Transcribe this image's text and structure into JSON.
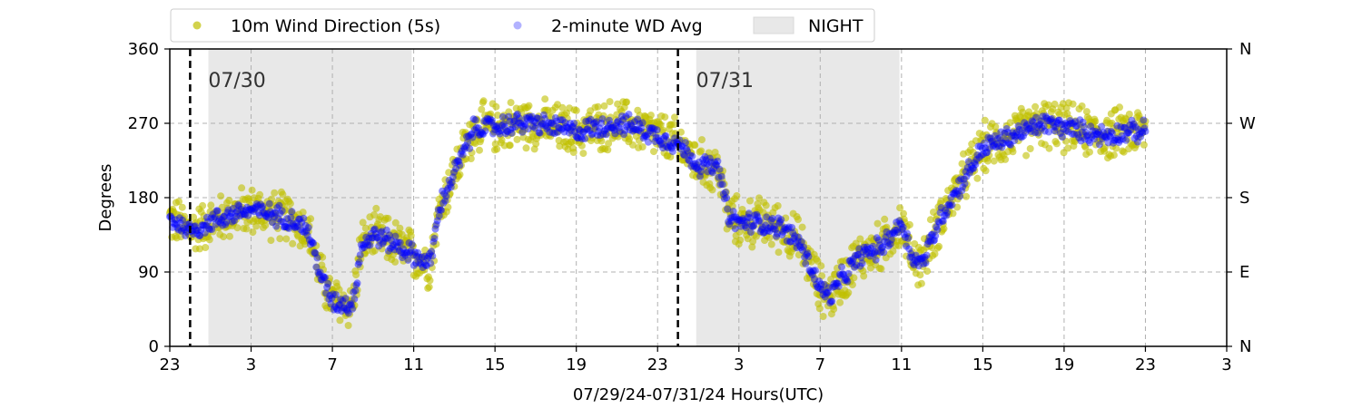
{
  "chart_data": {
    "type": "scatter",
    "x_unit": "hours since 23:00 UTC 07/29",
    "x_ticks": [
      {
        "x": 0,
        "label": "23"
      },
      {
        "x": 4,
        "label": "3"
      },
      {
        "x": 8,
        "label": "7"
      },
      {
        "x": 12,
        "label": "11"
      },
      {
        "x": 16,
        "label": "15"
      },
      {
        "x": 20,
        "label": "19"
      },
      {
        "x": 24,
        "label": "23"
      },
      {
        "x": 28,
        "label": "3"
      },
      {
        "x": 32,
        "label": "7"
      },
      {
        "x": 36,
        "label": "11"
      },
      {
        "x": 40,
        "label": "15"
      },
      {
        "x": 44,
        "label": "19"
      },
      {
        "x": 48,
        "label": "23"
      },
      {
        "x": 52,
        "label": "3"
      }
    ],
    "xlim": [
      0,
      52
    ],
    "ylim": [
      0,
      360
    ],
    "y_ticks": [
      0,
      90,
      180,
      270,
      360
    ],
    "y_right_ticks": [
      {
        "y": 0,
        "label": "N"
      },
      {
        "y": 90,
        "label": "E"
      },
      {
        "y": 180,
        "label": "S"
      },
      {
        "y": 270,
        "label": "W"
      },
      {
        "y": 360,
        "label": "N"
      }
    ],
    "xlabel": "07/29/24-07/31/24  Hours(UTC)",
    "ylabel": "Degrees",
    "grid": true,
    "legend_position": "top",
    "legend": [
      "10m Wind Direction (5s)",
      "2-minute WD Avg",
      "NIGHT"
    ],
    "day_markers": [
      {
        "x": 1,
        "label": "07/30"
      },
      {
        "x": 25,
        "label": "07/31"
      }
    ],
    "night_spans": [
      [
        1.9,
        11.9
      ],
      [
        25.9,
        35.9
      ]
    ],
    "series": [
      {
        "name": "10m Wind Direction (5s)",
        "color": "#bfbf00",
        "profile": [
          [
            0,
            155
          ],
          [
            1,
            140
          ],
          [
            2,
            150
          ],
          [
            3,
            160
          ],
          [
            4,
            165
          ],
          [
            5,
            160
          ],
          [
            6,
            155
          ],
          [
            6.8,
            140
          ],
          [
            7.5,
            80
          ],
          [
            8,
            55
          ],
          [
            9,
            50
          ],
          [
            9.4,
            120
          ],
          [
            10,
            135
          ],
          [
            11,
            125
          ],
          [
            12,
            110
          ],
          [
            12.8,
            100
          ],
          [
            13.3,
            170
          ],
          [
            14,
            210
          ],
          [
            15,
            265
          ],
          [
            16,
            265
          ],
          [
            17,
            270
          ],
          [
            18,
            270
          ],
          [
            19,
            265
          ],
          [
            20,
            260
          ],
          [
            21,
            265
          ],
          [
            22,
            270
          ],
          [
            23,
            265
          ],
          [
            24,
            255
          ],
          [
            25,
            245
          ],
          [
            26,
            220
          ],
          [
            27,
            215
          ],
          [
            27.5,
            155
          ],
          [
            28,
            150
          ],
          [
            29,
            150
          ],
          [
            30,
            145
          ],
          [
            31,
            125
          ],
          [
            32,
            70
          ],
          [
            32.5,
            60
          ],
          [
            33,
            80
          ],
          [
            34,
            110
          ],
          [
            35,
            120
          ],
          [
            36,
            150
          ],
          [
            36.5,
            110
          ],
          [
            37,
            100
          ],
          [
            38,
            160
          ],
          [
            39,
            200
          ],
          [
            40,
            240
          ],
          [
            41,
            250
          ],
          [
            42,
            260
          ],
          [
            43,
            270
          ],
          [
            44,
            265
          ],
          [
            45,
            260
          ],
          [
            46,
            255
          ],
          [
            47,
            260
          ],
          [
            48,
            260
          ]
        ],
        "spread": 35
      },
      {
        "name": "2-minute WD Avg",
        "color": "#0000ff",
        "profile": [
          [
            0,
            155
          ],
          [
            1,
            140
          ],
          [
            2,
            150
          ],
          [
            3,
            160
          ],
          [
            4,
            165
          ],
          [
            5,
            160
          ],
          [
            6,
            155
          ],
          [
            6.8,
            140
          ],
          [
            7.5,
            80
          ],
          [
            8,
            55
          ],
          [
            9,
            50
          ],
          [
            9.4,
            120
          ],
          [
            10,
            135
          ],
          [
            11,
            125
          ],
          [
            12,
            110
          ],
          [
            12.8,
            100
          ],
          [
            13.3,
            170
          ],
          [
            14,
            210
          ],
          [
            15,
            265
          ],
          [
            16,
            265
          ],
          [
            17,
            270
          ],
          [
            18,
            270
          ],
          [
            19,
            265
          ],
          [
            20,
            260
          ],
          [
            21,
            265
          ],
          [
            22,
            270
          ],
          [
            23,
            265
          ],
          [
            24,
            255
          ],
          [
            25,
            245
          ],
          [
            26,
            220
          ],
          [
            27,
            215
          ],
          [
            27.5,
            155
          ],
          [
            28,
            150
          ],
          [
            29,
            150
          ],
          [
            30,
            145
          ],
          [
            31,
            125
          ],
          [
            32,
            70
          ],
          [
            32.5,
            60
          ],
          [
            33,
            80
          ],
          [
            34,
            110
          ],
          [
            35,
            120
          ],
          [
            36,
            150
          ],
          [
            36.5,
            110
          ],
          [
            37,
            100
          ],
          [
            38,
            160
          ],
          [
            39,
            200
          ],
          [
            40,
            240
          ],
          [
            41,
            250
          ],
          [
            42,
            260
          ],
          [
            43,
            270
          ],
          [
            44,
            265
          ],
          [
            45,
            260
          ],
          [
            46,
            255
          ],
          [
            47,
            260
          ],
          [
            48,
            260
          ]
        ],
        "spread": 15
      }
    ],
    "colors": {
      "night_fill": "#e8e8e8",
      "grid": "#b0b0b0",
      "marker_line": "#000000"
    }
  }
}
